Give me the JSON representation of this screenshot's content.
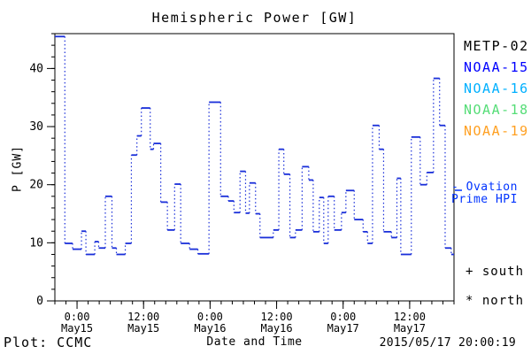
{
  "title": "Hemispheric Power [GW]",
  "legend": {
    "satellites": [
      {
        "label": "METP-02",
        "color": "#000000"
      },
      {
        "label": "NOAA-15",
        "color": "#0000ff"
      },
      {
        "label": "NOAA-16",
        "color": "#00b0ff"
      },
      {
        "label": "NOAA-18",
        "color": "#55dd77"
      },
      {
        "label": "NOAA-19",
        "color": "#ffa022"
      }
    ],
    "ovation_line1": "- Ovation",
    "ovation_line2": "Prime HPI",
    "ovation_color": "#0033ff",
    "south_marker": "+ south",
    "north_marker": "* north"
  },
  "footer": {
    "credit": "Plot: CCMC",
    "timestamp": "2015/05/17 20:00:19"
  },
  "chart_data": {
    "type": "line",
    "style": "step plot: solid horizontal value segments joined by dotted vertical connectors",
    "title": "Hemispheric Power [GW]",
    "xlabel": "Date and Time",
    "ylabel": "P [GW]",
    "series_name": "Ovation Prime HPI",
    "line_color": "#1a2fd9",
    "ylim": [
      0,
      46
    ],
    "y_major_ticks": [
      0,
      10,
      20,
      30,
      40
    ],
    "y_minor_step": 2,
    "x_range_hours": 72,
    "x_minor_step_hours": 2,
    "x_major_ticks": [
      {
        "t": 4,
        "time": "0:00",
        "date": "May15"
      },
      {
        "t": 16,
        "time": "12:00",
        "date": "May15"
      },
      {
        "t": 28,
        "time": "0:00",
        "date": "May16"
      },
      {
        "t": 40,
        "time": "12:00",
        "date": "May16"
      },
      {
        "t": 52,
        "time": "0:00",
        "date": "May17"
      },
      {
        "t": 64,
        "time": "12:00",
        "date": "May17"
      }
    ],
    "steps_format": "[hours_from_plot_start, power_GW]",
    "steps": [
      [
        0.0,
        45.5
      ],
      [
        1.8,
        9.9
      ],
      [
        3.2,
        8.9
      ],
      [
        4.8,
        12.0
      ],
      [
        5.6,
        8.0
      ],
      [
        7.2,
        10.2
      ],
      [
        7.9,
        9.1
      ],
      [
        9.1,
        18.0
      ],
      [
        10.3,
        9.1
      ],
      [
        11.1,
        8.0
      ],
      [
        12.7,
        9.9
      ],
      [
        13.8,
        25.1
      ],
      [
        14.8,
        28.4
      ],
      [
        15.6,
        33.2
      ],
      [
        17.2,
        26.1
      ],
      [
        17.8,
        27.1
      ],
      [
        19.1,
        17.0
      ],
      [
        20.3,
        12.2
      ],
      [
        21.6,
        20.1
      ],
      [
        22.7,
        9.9
      ],
      [
        24.3,
        8.9
      ],
      [
        25.8,
        8.1
      ],
      [
        27.8,
        34.2
      ],
      [
        29.9,
        18.0
      ],
      [
        31.3,
        17.2
      ],
      [
        32.3,
        15.2
      ],
      [
        33.4,
        22.3
      ],
      [
        34.4,
        15.1
      ],
      [
        35.1,
        20.3
      ],
      [
        36.2,
        15.0
      ],
      [
        37.0,
        10.9
      ],
      [
        39.4,
        12.2
      ],
      [
        40.4,
        26.1
      ],
      [
        41.3,
        21.8
      ],
      [
        42.4,
        10.9
      ],
      [
        43.4,
        12.2
      ],
      [
        44.6,
        23.1
      ],
      [
        45.8,
        20.8
      ],
      [
        46.6,
        11.9
      ],
      [
        47.7,
        17.8
      ],
      [
        48.5,
        9.9
      ],
      [
        49.3,
        18.0
      ],
      [
        50.4,
        12.2
      ],
      [
        51.7,
        15.2
      ],
      [
        52.5,
        19.0
      ],
      [
        54.0,
        14.0
      ],
      [
        55.6,
        11.9
      ],
      [
        56.4,
        9.9
      ],
      [
        57.3,
        30.2
      ],
      [
        58.5,
        26.1
      ],
      [
        59.3,
        11.9
      ],
      [
        60.7,
        10.9
      ],
      [
        61.7,
        21.1
      ],
      [
        62.4,
        8.0
      ],
      [
        64.3,
        28.2
      ],
      [
        65.9,
        20.0
      ],
      [
        67.1,
        22.1
      ],
      [
        68.3,
        38.3
      ],
      [
        69.4,
        30.2
      ],
      [
        70.4,
        9.1
      ],
      [
        71.5,
        8.0
      ]
    ]
  }
}
